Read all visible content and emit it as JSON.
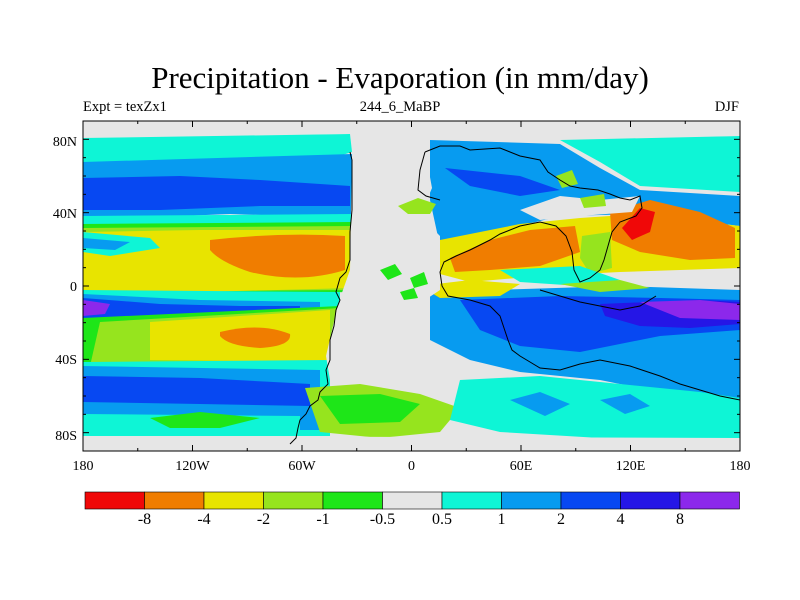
{
  "title": "Precipitation - Evaporation (in mm/day)",
  "experiment": "Expt = texZx1",
  "run_id": "244_6_MaBP",
  "season": "DJF",
  "y_ticks": [
    "80N",
    "40N",
    "0",
    "40S",
    "80S"
  ],
  "x_ticks": [
    "180",
    "120W",
    "60W",
    "0",
    "60E",
    "120E",
    "180"
  ],
  "colorbar": {
    "colors": [
      "#f00808",
      "#f07d00",
      "#e8e400",
      "#96e41e",
      "#1ee618",
      "#e6e6e6",
      "#0ef5d6",
      "#079bf0",
      "#0748f2",
      "#2516e6",
      "#8c28eb"
    ],
    "labels": [
      "-8",
      "-4",
      "-2",
      "-1",
      "-0.5",
      "0.5",
      "1",
      "2",
      "4",
      "8"
    ]
  },
  "colors": {
    "near_zero": "#e6e6e6",
    "coastline": "#000000"
  }
}
